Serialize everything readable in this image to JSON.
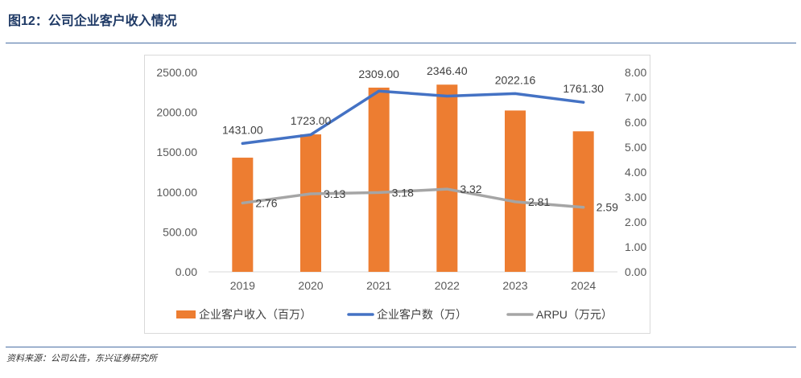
{
  "figure": {
    "title": "图12：公司企业客户收入情况",
    "source": "资料来源：公司公告，东兴证券研究所"
  },
  "colors": {
    "bar": "#ED7D31",
    "line_customers": "#4472C4",
    "line_arpu": "#A5A5A5",
    "rule": "#4a6fa5",
    "title": "#1f3a66"
  },
  "chart_data": {
    "type": "bar",
    "categories": [
      "2019",
      "2020",
      "2021",
      "2022",
      "2023",
      "2024"
    ],
    "series": [
      {
        "name": "企业客户收入（百万）",
        "type": "bar",
        "axis": "left",
        "values": [
          1431.0,
          1723.0,
          2309.0,
          2346.4,
          2022.16,
          1761.3
        ],
        "labels": [
          "1431.00",
          "1723.00",
          "2309.00",
          "2346.40",
          "2022.16",
          "1761.30"
        ]
      },
      {
        "name": "企业客户数（万）",
        "type": "line",
        "axis": "right",
        "values": [
          5.15,
          5.5,
          7.25,
          7.05,
          7.15,
          6.8
        ]
      },
      {
        "name": "ARPU（万元）",
        "type": "line",
        "axis": "right",
        "values": [
          2.76,
          3.13,
          3.18,
          3.32,
          2.81,
          2.59
        ],
        "labels": [
          "2.76",
          "3.13",
          "3.18",
          "3.32",
          "2.81",
          "2.59"
        ]
      }
    ],
    "y_left": {
      "range": [
        0,
        2500
      ],
      "ticks": [
        "0.00",
        "500.00",
        "1000.00",
        "1500.00",
        "2000.00",
        "2500.00"
      ]
    },
    "y_right": {
      "range": [
        0,
        8
      ],
      "ticks": [
        "0.00",
        "1.00",
        "2.00",
        "3.00",
        "4.00",
        "5.00",
        "6.00",
        "7.00",
        "8.00"
      ]
    },
    "grid": false,
    "legend_position": "bottom"
  }
}
